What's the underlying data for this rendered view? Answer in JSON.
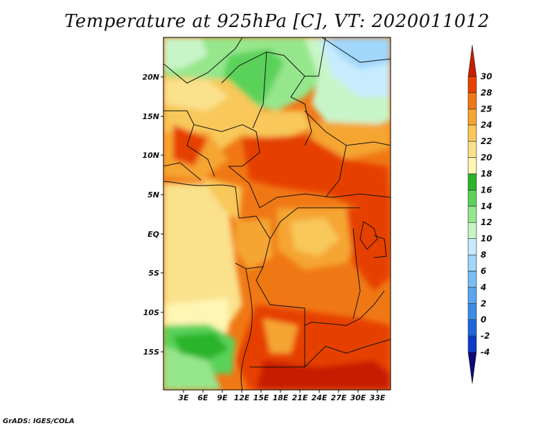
{
  "title": "Temperature at 925hPa [C], VT: 2020011012",
  "credit": "GrADS: IGES/COLA",
  "map": {
    "lat_labels": [
      "20N",
      "15N",
      "10N",
      "5N",
      "EQ",
      "5S",
      "10S",
      "15S"
    ],
    "lon_labels": [
      "3E",
      "6E",
      "9E",
      "12E",
      "15E",
      "18E",
      "21E",
      "24E",
      "27E",
      "30E",
      "33E"
    ]
  },
  "colorbar": {
    "levels": [
      "-4",
      "-2",
      "0",
      "2",
      "4",
      "6",
      "8",
      "10",
      "12",
      "14",
      "16",
      "18",
      "20",
      "22",
      "24",
      "25",
      "28",
      "30"
    ],
    "colors": [
      "#0a0a78",
      "#0a3cc8",
      "#1e64dc",
      "#3c8ce6",
      "#5aa5f0",
      "#78bef5",
      "#a0d7fa",
      "#c8ebfd",
      "#c8f5c8",
      "#96e68c",
      "#5ad25a",
      "#2ab42a",
      "#fff5b4",
      "#fae18c",
      "#f8c85a",
      "#f5a532",
      "#f07814",
      "#e64100",
      "#c81e00"
    ]
  }
}
